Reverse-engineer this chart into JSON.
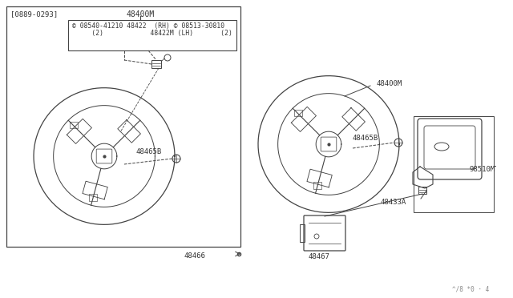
{
  "bg_color": "#ffffff",
  "line_color": "#444444",
  "text_color": "#333333",
  "fig_width": 6.4,
  "fig_height": 3.72,
  "watermark": "^/8 *0 · 4",
  "date_code": "[0889-0293]",
  "label_48400M": "48400M",
  "label_48422": "© 08540-41210 48422  (RH) © 08513-30810",
  "label_48422b": "     (2)            48422M (LH)       (2)",
  "label_48465B_l": "48465B",
  "label_48465B_r": "48465B",
  "label_48400M_r": "48400M",
  "label_98510M": "98510M",
  "label_48433A": "48433A",
  "label_48466": "48466",
  "label_48467": "48467"
}
